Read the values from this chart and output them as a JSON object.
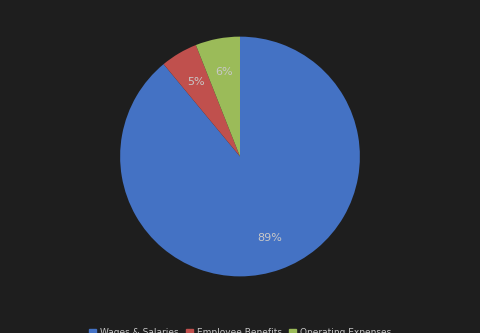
{
  "labels": [
    "Wages & Salaries",
    "Employee Benefits",
    "Operating Expenses"
  ],
  "values": [
    89,
    5,
    6
  ],
  "colors": [
    "#4472C4",
    "#C0504D",
    "#9BBB59"
  ],
  "background_color": "#1e1e1e",
  "text_color": "#c8c8c8",
  "pct_fontsize": 8,
  "legend_fontsize": 6.5,
  "startangle": 90,
  "counterclock": false,
  "pctdistance": 0.72
}
